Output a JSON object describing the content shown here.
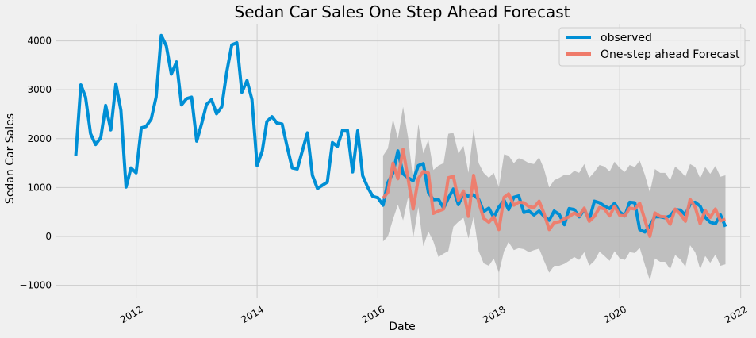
{
  "chart_data": {
    "type": "line",
    "title": "Sedan Car Sales One Step Ahead Forecast",
    "xlabel": "Date",
    "ylabel": "Sedan Car Sales",
    "xlim": [
      "2010-09-01",
      "2022-03-01"
    ],
    "ylim": [
      -1250,
      4350
    ],
    "x_ticks": [
      "2012-01-01",
      "2014-01-01",
      "2016-01-01",
      "2018-01-01",
      "2020-01-01",
      "2022-01-01"
    ],
    "x_tick_labels": [
      "2012",
      "2014",
      "2016",
      "2018",
      "2020",
      "2022"
    ],
    "y_ticks": [
      -1000,
      0,
      1000,
      2000,
      3000,
      4000
    ],
    "y_tick_labels": [
      "−1000",
      "0",
      "1000",
      "2000",
      "3000",
      "4000"
    ],
    "grid": true,
    "legend_position": "top-right",
    "colors": {
      "observed": "#008fd5",
      "forecast": "#ef7b6a",
      "band": "#a9a9a9",
      "background": "#f0f0f0",
      "grid": "#cbcbcb"
    },
    "observed": {
      "name": "observed",
      "start": "2011-01",
      "values": [
        1650,
        3100,
        2850,
        2100,
        1880,
        2020,
        2680,
        2180,
        3120,
        2580,
        1010,
        1400,
        1300,
        2220,
        2250,
        2400,
        2850,
        4110,
        3900,
        3320,
        3570,
        2690,
        2820,
        2850,
        1950,
        2320,
        2700,
        2800,
        2510,
        2650,
        3350,
        3920,
        3960,
        2950,
        3190,
        2800,
        1450,
        1750,
        2350,
        2450,
        2320,
        2300,
        1840,
        1400,
        1380,
        1750,
        2120,
        1250,
        980,
        1050,
        1110,
        1920,
        1840,
        2170,
        2170,
        1320,
        2160,
        1240,
        1000,
        820,
        790,
        640,
        1100,
        1300,
        1750,
        1280,
        1200,
        1140,
        1450,
        1490,
        900,
        750,
        760,
        580,
        780,
        970,
        650,
        880,
        820,
        850,
        760,
        510,
        580,
        390,
        600,
        740,
        550,
        800,
        830,
        490,
        520,
        440,
        520,
        410,
        330,
        520,
        450,
        240,
        570,
        550,
        400,
        550,
        340,
        720,
        690,
        620,
        570,
        680,
        500,
        420,
        700,
        690,
        140,
        90,
        220,
        400,
        400,
        380,
        420,
        550,
        540,
        440,
        660,
        700,
        620,
        390,
        290,
        260,
        440,
        200
      ]
    },
    "forecast": {
      "name": "One-step ahead Forecast",
      "start": "2016-02",
      "values": [
        780,
        900,
        1500,
        1180,
        1780,
        1180,
        560,
        1180,
        1330,
        1300,
        470,
        520,
        560,
        1200,
        1230,
        740,
        930,
        410,
        1250,
        700,
        370,
        290,
        400,
        140,
        800,
        870,
        640,
        700,
        690,
        610,
        590,
        720,
        470,
        140,
        280,
        300,
        360,
        400,
        480,
        420,
        580,
        310,
        410,
        590,
        560,
        420,
        620,
        430,
        420,
        580,
        560,
        680,
        340,
        0,
        480,
        410,
        400,
        250,
        560,
        460,
        310,
        760,
        600,
        260,
        530,
        390,
        560,
        320,
        350
      ]
    },
    "confidence_interval": {
      "start": "2016-02",
      "lower": [
        -100,
        0,
        350,
        650,
        330,
        800,
        -40,
        600,
        -200,
        100,
        -100,
        -420,
        -350,
        -300,
        200,
        300,
        380,
        -40,
        400,
        -300,
        -550,
        -600,
        -450,
        -740,
        -300,
        -120,
        -280,
        -240,
        -260,
        -320,
        -280,
        -250,
        -500,
        -740,
        -600,
        -600,
        -560,
        -500,
        -420,
        -480,
        -320,
        -600,
        -500,
        -310,
        -400,
        -500,
        -300,
        -450,
        -480,
        -320,
        -340,
        -230,
        -580,
        -900,
        -450,
        -520,
        -520,
        -670,
        -380,
        -470,
        -620,
        -180,
        -320,
        -670,
        -400,
        -540,
        -370,
        -600,
        -570
      ],
      "upper": [
        1650,
        1800,
        2400,
        2000,
        2650,
        2030,
        1160,
        2300,
        1700,
        1980,
        1360,
        1450,
        1500,
        2100,
        2120,
        1700,
        1850,
        1300,
        2200,
        1500,
        1300,
        1200,
        1300,
        1000,
        1680,
        1650,
        1500,
        1600,
        1560,
        1500,
        1480,
        1620,
        1380,
        1000,
        1150,
        1200,
        1260,
        1250,
        1340,
        1300,
        1480,
        1200,
        1320,
        1460,
        1430,
        1330,
        1530,
        1400,
        1320,
        1460,
        1420,
        1550,
        1260,
        900,
        1380,
        1300,
        1300,
        1150,
        1430,
        1340,
        1220,
        1480,
        1420,
        1190,
        1420,
        1280,
        1440,
        1220,
        1250
      ]
    },
    "legend": [
      "observed",
      "One-step ahead Forecast"
    ]
  }
}
